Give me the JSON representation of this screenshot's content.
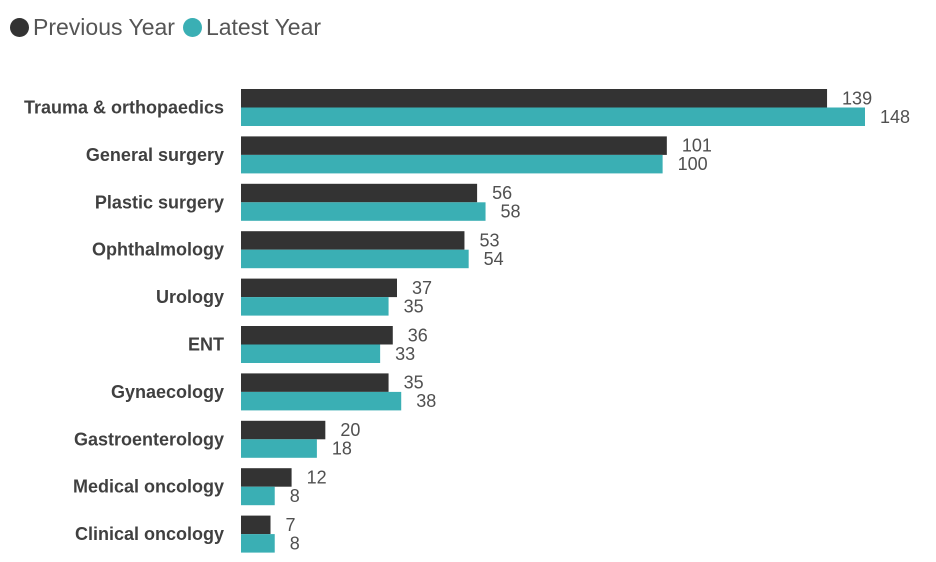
{
  "chart_data": {
    "type": "bar",
    "orientation": "horizontal",
    "categories": [
      "Trauma & orthopaedics",
      "General surgery",
      "Plastic surgery",
      "Ophthalmology",
      "Urology",
      "ENT",
      "Gynaecology",
      "Gastroenterology",
      "Medical oncology",
      "Clinical oncology"
    ],
    "series": [
      {
        "name": "Previous Year",
        "color": "#333333",
        "values": [
          139,
          101,
          56,
          53,
          37,
          36,
          35,
          20,
          12,
          7
        ]
      },
      {
        "name": "Latest Year",
        "color": "#3aafb4",
        "values": [
          148,
          100,
          58,
          54,
          35,
          33,
          38,
          18,
          8,
          8
        ]
      }
    ],
    "title": "",
    "xlabel": "",
    "ylabel": "",
    "xlim": [
      0,
      148
    ],
    "grid": false,
    "legend": "top-left",
    "data_labels": true
  }
}
